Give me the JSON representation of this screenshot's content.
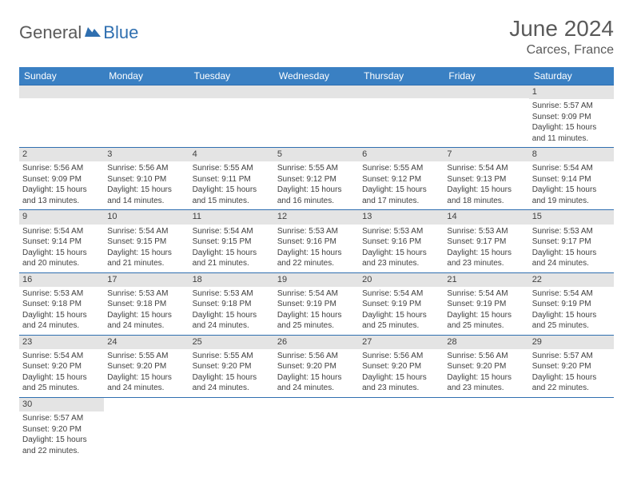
{
  "logo": {
    "part1": "General",
    "part2": "Blue"
  },
  "title": "June 2024",
  "location": "Carces, France",
  "colors": {
    "header_bg": "#3a80c3",
    "header_text": "#ffffff",
    "daynum_bg": "#e4e4e4",
    "border": "#2f6fb0",
    "body_text": "#404040",
    "title_text": "#5a5a5a",
    "logo_accent": "#2f6fb0"
  },
  "weekdays": [
    "Sunday",
    "Monday",
    "Tuesday",
    "Wednesday",
    "Thursday",
    "Friday",
    "Saturday"
  ],
  "weeks": [
    [
      null,
      null,
      null,
      null,
      null,
      null,
      {
        "n": "1",
        "sr": "5:57 AM",
        "ss": "9:09 PM",
        "dl": "15 hours and 11 minutes."
      }
    ],
    [
      {
        "n": "2",
        "sr": "5:56 AM",
        "ss": "9:09 PM",
        "dl": "15 hours and 13 minutes."
      },
      {
        "n": "3",
        "sr": "5:56 AM",
        "ss": "9:10 PM",
        "dl": "15 hours and 14 minutes."
      },
      {
        "n": "4",
        "sr": "5:55 AM",
        "ss": "9:11 PM",
        "dl": "15 hours and 15 minutes."
      },
      {
        "n": "5",
        "sr": "5:55 AM",
        "ss": "9:12 PM",
        "dl": "15 hours and 16 minutes."
      },
      {
        "n": "6",
        "sr": "5:55 AM",
        "ss": "9:12 PM",
        "dl": "15 hours and 17 minutes."
      },
      {
        "n": "7",
        "sr": "5:54 AM",
        "ss": "9:13 PM",
        "dl": "15 hours and 18 minutes."
      },
      {
        "n": "8",
        "sr": "5:54 AM",
        "ss": "9:14 PM",
        "dl": "15 hours and 19 minutes."
      }
    ],
    [
      {
        "n": "9",
        "sr": "5:54 AM",
        "ss": "9:14 PM",
        "dl": "15 hours and 20 minutes."
      },
      {
        "n": "10",
        "sr": "5:54 AM",
        "ss": "9:15 PM",
        "dl": "15 hours and 21 minutes."
      },
      {
        "n": "11",
        "sr": "5:54 AM",
        "ss": "9:15 PM",
        "dl": "15 hours and 21 minutes."
      },
      {
        "n": "12",
        "sr": "5:53 AM",
        "ss": "9:16 PM",
        "dl": "15 hours and 22 minutes."
      },
      {
        "n": "13",
        "sr": "5:53 AM",
        "ss": "9:16 PM",
        "dl": "15 hours and 23 minutes."
      },
      {
        "n": "14",
        "sr": "5:53 AM",
        "ss": "9:17 PM",
        "dl": "15 hours and 23 minutes."
      },
      {
        "n": "15",
        "sr": "5:53 AM",
        "ss": "9:17 PM",
        "dl": "15 hours and 24 minutes."
      }
    ],
    [
      {
        "n": "16",
        "sr": "5:53 AM",
        "ss": "9:18 PM",
        "dl": "15 hours and 24 minutes."
      },
      {
        "n": "17",
        "sr": "5:53 AM",
        "ss": "9:18 PM",
        "dl": "15 hours and 24 minutes."
      },
      {
        "n": "18",
        "sr": "5:53 AM",
        "ss": "9:18 PM",
        "dl": "15 hours and 24 minutes."
      },
      {
        "n": "19",
        "sr": "5:54 AM",
        "ss": "9:19 PM",
        "dl": "15 hours and 25 minutes."
      },
      {
        "n": "20",
        "sr": "5:54 AM",
        "ss": "9:19 PM",
        "dl": "15 hours and 25 minutes."
      },
      {
        "n": "21",
        "sr": "5:54 AM",
        "ss": "9:19 PM",
        "dl": "15 hours and 25 minutes."
      },
      {
        "n": "22",
        "sr": "5:54 AM",
        "ss": "9:19 PM",
        "dl": "15 hours and 25 minutes."
      }
    ],
    [
      {
        "n": "23",
        "sr": "5:54 AM",
        "ss": "9:20 PM",
        "dl": "15 hours and 25 minutes."
      },
      {
        "n": "24",
        "sr": "5:55 AM",
        "ss": "9:20 PM",
        "dl": "15 hours and 24 minutes."
      },
      {
        "n": "25",
        "sr": "5:55 AM",
        "ss": "9:20 PM",
        "dl": "15 hours and 24 minutes."
      },
      {
        "n": "26",
        "sr": "5:56 AM",
        "ss": "9:20 PM",
        "dl": "15 hours and 24 minutes."
      },
      {
        "n": "27",
        "sr": "5:56 AM",
        "ss": "9:20 PM",
        "dl": "15 hours and 23 minutes."
      },
      {
        "n": "28",
        "sr": "5:56 AM",
        "ss": "9:20 PM",
        "dl": "15 hours and 23 minutes."
      },
      {
        "n": "29",
        "sr": "5:57 AM",
        "ss": "9:20 PM",
        "dl": "15 hours and 22 minutes."
      }
    ],
    [
      {
        "n": "30",
        "sr": "5:57 AM",
        "ss": "9:20 PM",
        "dl": "15 hours and 22 minutes."
      },
      null,
      null,
      null,
      null,
      null,
      null
    ]
  ],
  "labels": {
    "sunrise": "Sunrise:",
    "sunset": "Sunset:",
    "daylight": "Daylight:"
  }
}
